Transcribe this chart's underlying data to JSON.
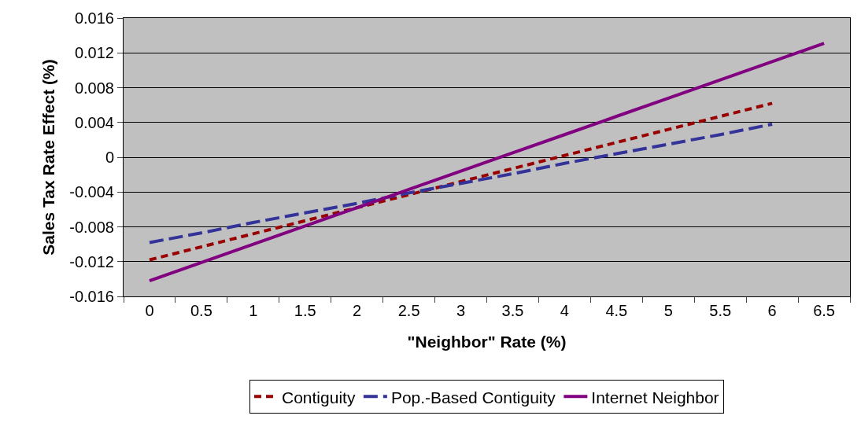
{
  "chart_data": {
    "type": "line",
    "xlabel": "\"Neighbor\" Rate (%)",
    "ylabel": "Sales Tax Rate Effect (%)",
    "categories": [
      "0",
      "0.5",
      "1",
      "1.5",
      "2",
      "2.5",
      "3",
      "3.5",
      "4",
      "4.5",
      "5",
      "5.5",
      "6",
      "6.5"
    ],
    "series": [
      {
        "name": "Contiguity",
        "color": "#990000",
        "line_style": "dotted",
        "values": [
          -0.0118,
          -0.0103,
          -0.0088,
          -0.0073,
          -0.0058,
          -0.0043,
          -0.0028,
          -0.0013,
          0.0002,
          0.0017,
          0.0032,
          0.0047,
          0.0062,
          null
        ]
      },
      {
        "name": "Pop.-Based Contiguity",
        "color": "#333399",
        "line_style": "dashed",
        "values": [
          -0.0098,
          -0.0087,
          -0.0075,
          -0.0064,
          -0.0053,
          -0.0041,
          -0.003,
          -0.0019,
          -0.0007,
          0.0004,
          0.0015,
          0.0026,
          0.0038,
          null
        ]
      },
      {
        "name": "Internet Neighbor",
        "color": "#800080",
        "line_style": "solid",
        "values": [
          -0.0142,
          -0.0121,
          -0.01,
          -0.0079,
          -0.0058,
          -0.0037,
          -0.0016,
          0.0005,
          0.0026,
          0.0047,
          0.0068,
          0.0089,
          0.011,
          0.0131
        ]
      }
    ],
    "ylim": [
      -0.016,
      0.016
    ],
    "yticks": [
      -0.016,
      -0.012,
      -0.008,
      -0.004,
      0,
      0.004,
      0.008,
      0.012,
      0.016
    ],
    "grid": "y",
    "legend": "bottom",
    "marker": "none"
  }
}
